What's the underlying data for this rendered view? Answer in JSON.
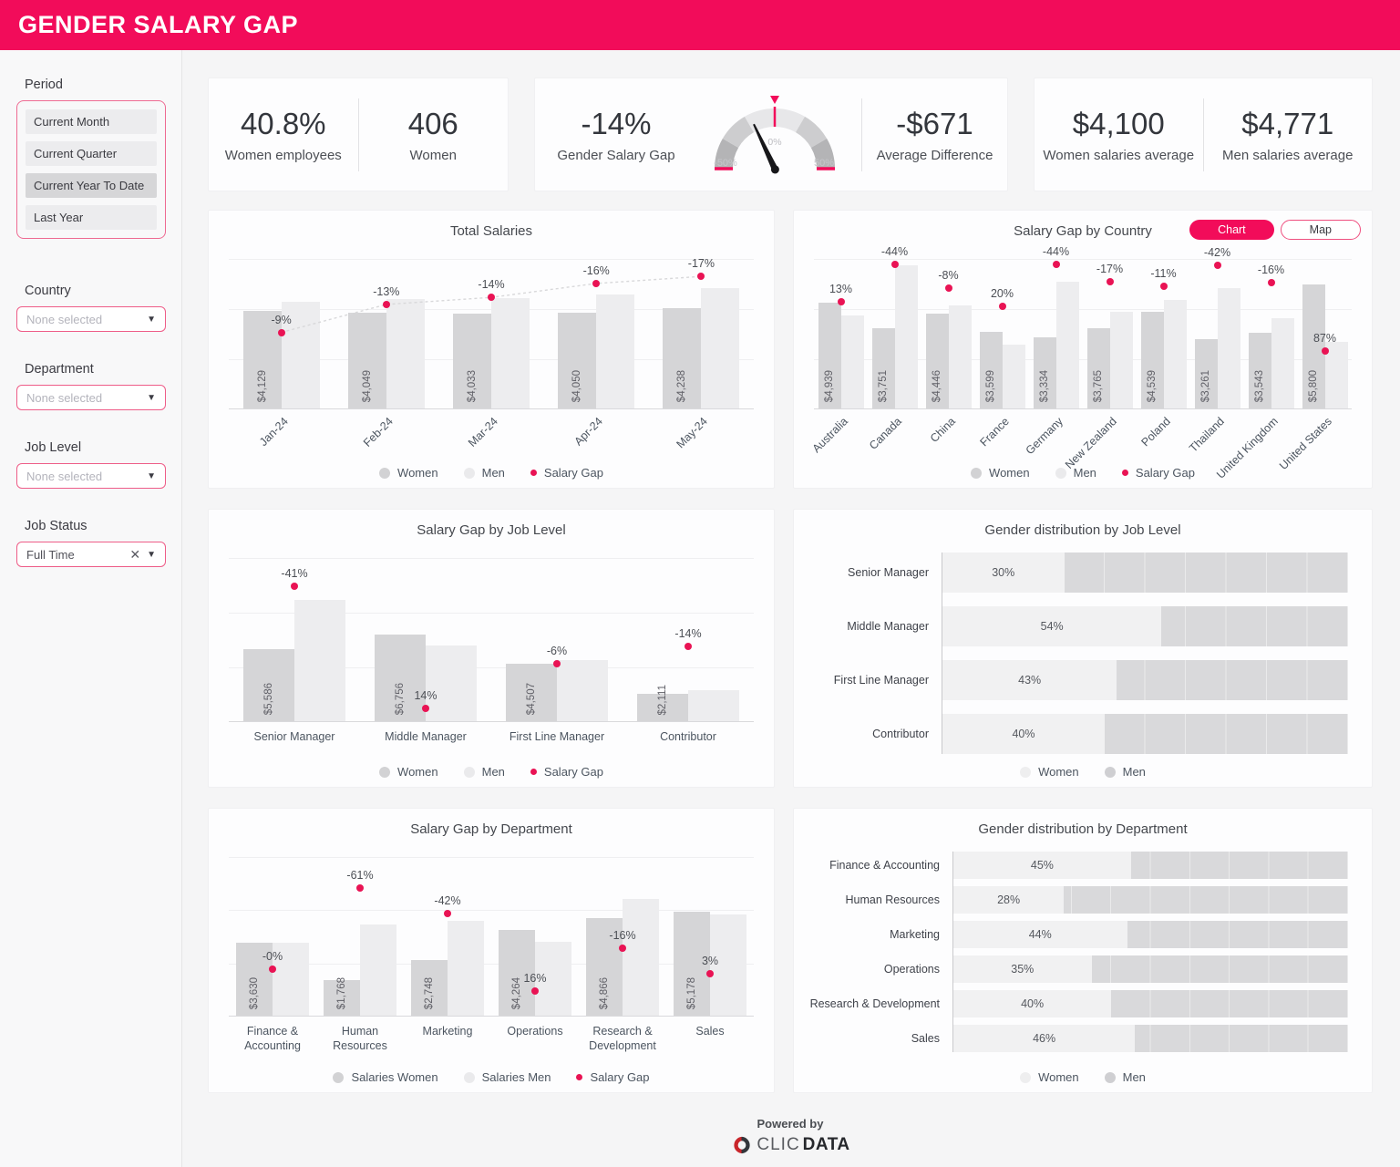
{
  "header": {
    "title": "GENDER SALARY GAP"
  },
  "colors": {
    "accent": "#f20c5a",
    "gap_dot": "#e91354",
    "bar_women": "#d5d5d7",
    "bar_men": "#ededef",
    "dist_women": "#f1f1f2",
    "dist_men": "#d9d9db"
  },
  "sidebar": {
    "period": {
      "label": "Period",
      "options": [
        {
          "label": "Current Month",
          "selected": false
        },
        {
          "label": "Current Quarter",
          "selected": false
        },
        {
          "label": "Current Year To Date",
          "selected": true
        },
        {
          "label": "Last Year",
          "selected": false
        }
      ]
    },
    "filters": [
      {
        "label": "Country",
        "value": "None selected",
        "is_placeholder": true,
        "clearable": false
      },
      {
        "label": "Department",
        "value": "None selected",
        "is_placeholder": true,
        "clearable": false
      },
      {
        "label": "Job Level",
        "value": "None selected",
        "is_placeholder": true,
        "clearable": false
      },
      {
        "label": "Job Status",
        "value": "Full Time",
        "is_placeholder": false,
        "clearable": true
      }
    ]
  },
  "kpis": {
    "women_pct": {
      "value": "40.8%",
      "label": "Women employees"
    },
    "women_count": {
      "value": "406",
      "label": "Women"
    },
    "gap": {
      "value": "-14%",
      "label": "Gender Salary Gap"
    },
    "avg_diff": {
      "value": "-$671",
      "label": "Average Difference"
    },
    "women_avg": {
      "value": "$4,100",
      "label": "Women salaries average"
    },
    "men_avg": {
      "value": "$4,771",
      "label": "Men salaries average"
    }
  },
  "gauge": {
    "min": -50,
    "max": 50,
    "value": -14,
    "labels": {
      "zero": "0%",
      "min": "-50%",
      "max": "50%"
    }
  },
  "chart_data": [
    {
      "id": "total-salaries",
      "type": "bar",
      "title": "Total Salaries",
      "categories": [
        "Jan-24",
        "Feb-24",
        "Mar-24",
        "Apr-24",
        "May-24"
      ],
      "series": [
        {
          "name": "Women",
          "values": [
            4129,
            4049,
            4033,
            4050,
            4238
          ],
          "labels": [
            "$4,129",
            "$4,049",
            "$4,033",
            "$4,050",
            "$4,238"
          ]
        },
        {
          "name": "Men",
          "values": [
            4537,
            4654,
            4689,
            4821,
            5106
          ]
        }
      ],
      "gap_series": {
        "name": "Salary Gap",
        "values": [
          -9,
          -13,
          -14,
          -16,
          -17
        ],
        "labels": [
          "-9%",
          "-13%",
          "-14%",
          "-16%",
          "-17%"
        ]
      },
      "legend": [
        "Women",
        "Men",
        "Salary Gap"
      ],
      "gap_axis": [
        -19.5,
        2
      ],
      "connect_dots": true
    },
    {
      "id": "gap-country",
      "type": "bar",
      "title": "Salary Gap by Country",
      "toggle": [
        {
          "label": "Chart",
          "active": true
        },
        {
          "label": "Map",
          "active": false
        }
      ],
      "categories": [
        "Australia",
        "Canada",
        "China",
        "France",
        "Germany",
        "New Zealand",
        "Poland",
        "Thailand",
        "United Kingdom",
        "United States"
      ],
      "series": [
        {
          "name": "Women",
          "values": [
            4939,
            3751,
            4446,
            3599,
            3334,
            3765,
            4539,
            3261,
            3543,
            5800
          ],
          "labels": [
            "$4,939",
            "$3,751",
            "$4,446",
            "$3,599",
            "$3,334",
            "$3,765",
            "$4,539",
            "$3,261",
            "$3,543",
            "$5,800"
          ]
        },
        {
          "name": "Men",
          "values": [
            4371,
            6698,
            4833,
            2999,
            5954,
            4536,
            5100,
            5622,
            4218,
            3102
          ]
        }
      ],
      "gap_series": {
        "name": "Salary Gap",
        "values": [
          13,
          -44,
          -8,
          20,
          -44,
          -17,
          -11,
          -42,
          -16,
          87
        ],
        "labels": [
          "13%",
          "-44%",
          "-8%",
          "20%",
          "-44%",
          "-17%",
          "-11%",
          "-42%",
          "-16%",
          "87%"
        ]
      },
      "legend": [
        "Women",
        "Men",
        "Salary Gap"
      ],
      "gap_axis": [
        -52,
        175
      ],
      "connect_dots": false
    },
    {
      "id": "gap-job-level",
      "type": "bar",
      "title": "Salary Gap by Job Level",
      "categories": [
        "Senior Manager",
        "Middle Manager",
        "First Line Manager",
        "Contributor"
      ],
      "series": [
        {
          "name": "Women",
          "values": [
            5586,
            6756,
            4507,
            2111
          ],
          "labels": [
            "$5,586",
            "$6,756",
            "$4,507",
            "$2,111"
          ]
        },
        {
          "name": "Men",
          "values": [
            9468,
            5926,
            4794,
            2455
          ]
        }
      ],
      "gap_series": {
        "name": "Salary Gap",
        "values": [
          -41,
          14,
          -6,
          -14
        ],
        "labels": [
          "-41%",
          "14%",
          "-6%",
          "-14%"
        ]
      },
      "legend": [
        "Women",
        "Men",
        "Salary Gap"
      ],
      "gap_axis": [
        -53.5,
        20
      ],
      "connect_dots": false
    },
    {
      "id": "dist-job-level",
      "type": "bar",
      "title": "Gender distribution by Job Level",
      "rows": [
        {
          "label": "Senior Manager",
          "women": 30,
          "women_label": "30%"
        },
        {
          "label": "Middle Manager",
          "women": 54,
          "women_label": "54%"
        },
        {
          "label": "First Line Manager",
          "women": 43,
          "women_label": "43%"
        },
        {
          "label": "Contributor",
          "women": 40,
          "women_label": "40%"
        }
      ],
      "legend": [
        "Women",
        "Men"
      ]
    },
    {
      "id": "gap-department",
      "type": "bar",
      "title": "Salary Gap by Department",
      "categories": [
        "Finance & Accounting",
        "Human Resources",
        "Marketing",
        "Operations",
        "Research & Development",
        "Sales"
      ],
      "series": [
        {
          "name": "Salaries Women",
          "values": [
            3630,
            1768,
            2748,
            4264,
            4866,
            5178
          ],
          "labels": [
            "$3,630",
            "$1,768",
            "$2,748",
            "$4,264",
            "$4,866",
            "$5,178"
          ]
        },
        {
          "name": "Salaries Men",
          "values": [
            3645,
            4533,
            4738,
            3676,
            5793,
            5027
          ]
        }
      ],
      "gap_series": {
        "name": "Salary Gap",
        "values": [
          -0.5,
          -61,
          -42,
          16,
          -16,
          3
        ],
        "labels": [
          "-0%",
          "-61%",
          "-42%",
          "16%",
          "-16%",
          "3%"
        ]
      },
      "legend": [
        "Salaries Women",
        "Salaries Men",
        "Salary Gap"
      ],
      "gap_axis": [
        -84,
        35
      ],
      "connect_dots": false
    },
    {
      "id": "dist-department",
      "type": "bar",
      "title": "Gender distribution by Department",
      "rows": [
        {
          "label": "Finance & Accounting",
          "women": 45,
          "women_label": "45%"
        },
        {
          "label": "Human Resources",
          "women": 28,
          "women_label": "28%"
        },
        {
          "label": "Marketing",
          "women": 44,
          "women_label": "44%"
        },
        {
          "label": "Operations",
          "women": 35,
          "women_label": "35%"
        },
        {
          "label": "Research & Development",
          "women": 40,
          "women_label": "40%"
        },
        {
          "label": "Sales",
          "women": 46,
          "women_label": "46%"
        }
      ],
      "legend": [
        "Women",
        "Men"
      ]
    }
  ],
  "footer": {
    "powered_by": "Powered by",
    "brand_prefix": "CLIC",
    "brand_suffix": "DATA"
  }
}
